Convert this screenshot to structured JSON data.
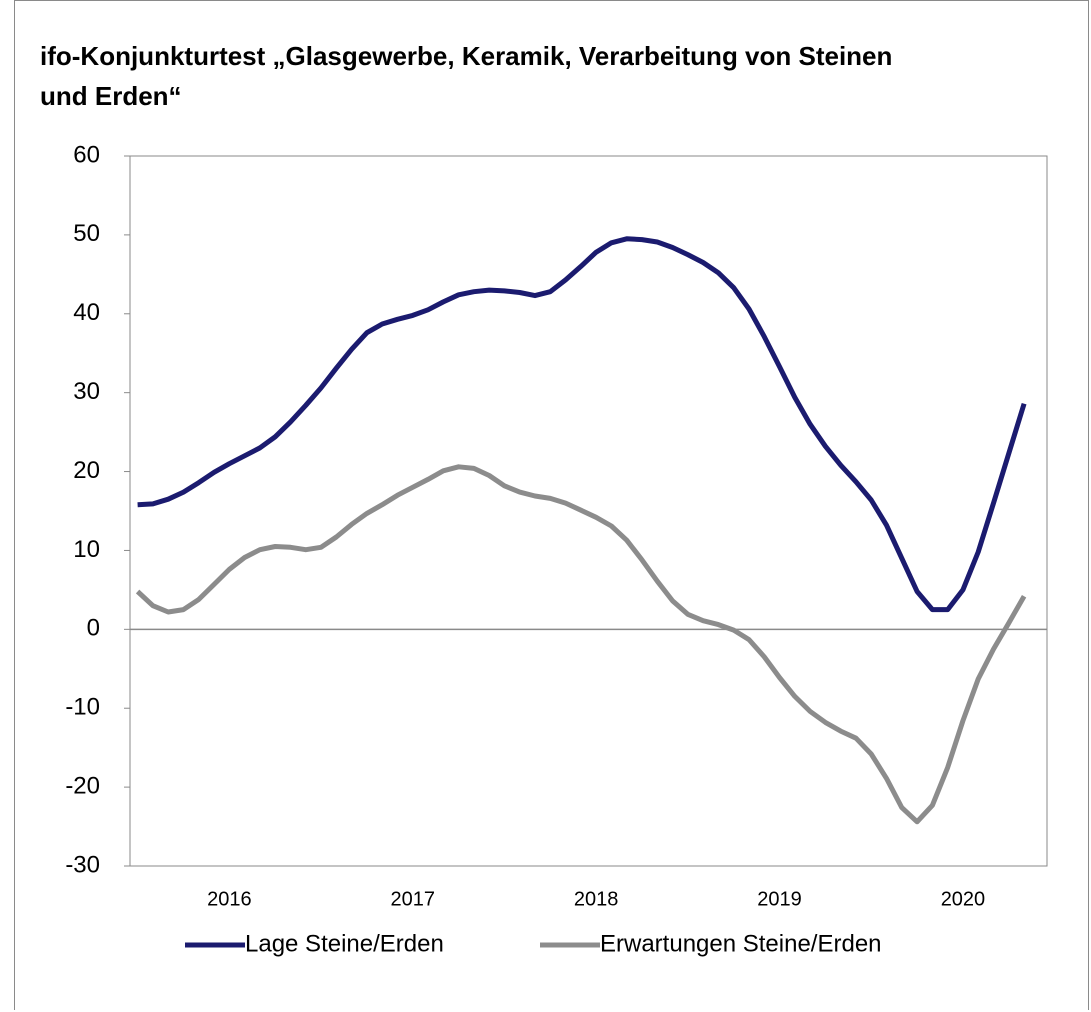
{
  "chart_data": {
    "type": "line",
    "title": "ifo-Konjunkturtest „Glasgewerbe, Keramik, Verarbeitung von Steinen und Erden“",
    "categories": [
      null,
      null,
      null,
      null,
      null,
      null,
      "2016",
      null,
      null,
      null,
      null,
      null,
      null,
      null,
      null,
      null,
      null,
      null,
      "2017",
      null,
      null,
      null,
      null,
      null,
      null,
      null,
      null,
      null,
      null,
      null,
      "2018",
      null,
      null,
      null,
      null,
      null,
      null,
      null,
      null,
      null,
      null,
      null,
      "2019",
      null,
      null,
      null,
      null,
      null,
      null,
      null,
      null,
      null,
      null,
      null,
      "2020",
      null,
      null,
      null,
      null,
      null
    ],
    "series": [
      {
        "name": "Lage Steine/Erden",
        "color": "#1b1b6f",
        "values": [
          15.8,
          15.9,
          16.5,
          17.4,
          18.6,
          19.9,
          21.0,
          22.0,
          23.0,
          24.4,
          26.3,
          28.4,
          30.6,
          33.1,
          35.5,
          37.6,
          38.7,
          39.3,
          39.8,
          40.5,
          41.5,
          42.4,
          42.8,
          43.0,
          42.9,
          42.7,
          42.3,
          42.8,
          44.3,
          46.0,
          47.8,
          49.0,
          49.5,
          49.4,
          49.1,
          48.4,
          47.5,
          46.5,
          45.2,
          43.3,
          40.6,
          37.1,
          33.3,
          29.4,
          26.0,
          23.2,
          20.8,
          18.7,
          16.4,
          13.2,
          9.0,
          4.8,
          2.5,
          2.5,
          5.0,
          9.8,
          16.0,
          22.3,
          28.6,
          null
        ]
      },
      {
        "name": "Erwartungen Steine/Erden",
        "color": "#8c8c8c",
        "values": [
          4.8,
          3.0,
          2.2,
          2.5,
          3.8,
          5.7,
          7.6,
          9.1,
          10.1,
          10.5,
          10.4,
          10.1,
          10.4,
          11.7,
          13.3,
          14.7,
          15.8,
          17.0,
          18.0,
          19.0,
          20.1,
          20.6,
          20.4,
          19.5,
          18.2,
          17.4,
          16.9,
          16.6,
          16.0,
          15.1,
          14.2,
          13.1,
          11.3,
          8.8,
          6.1,
          3.6,
          1.9,
          1.1,
          0.6,
          -0.1,
          -1.3,
          -3.5,
          -6.1,
          -8.5,
          -10.4,
          -11.8,
          -12.9,
          -13.8,
          -15.8,
          -18.9,
          -22.6,
          -24.4,
          -22.3,
          -17.5,
          -11.6,
          -6.3,
          -2.5,
          0.8,
          4.2,
          null
        ]
      }
    ],
    "ylim": [
      -30,
      60
    ],
    "yticks": [
      -30,
      -20,
      -10,
      0,
      10,
      20,
      30,
      40,
      50,
      60
    ],
    "grid": false,
    "legend": "bottom"
  }
}
